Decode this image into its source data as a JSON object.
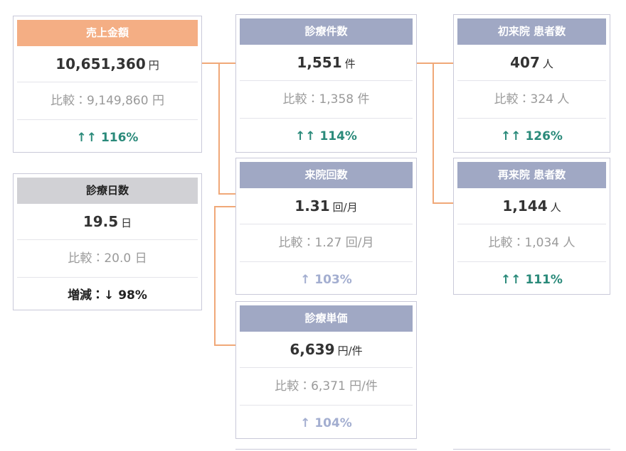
{
  "cards": [
    {
      "title": "売上金額",
      "value": "10,651,360",
      "unit": "円",
      "comparison": "比較：9,149,860 円",
      "change": "↑↑ 116%"
    },
    {
      "title": "診療日数",
      "value": "19.5",
      "unit": "日",
      "comparison": "比較：20.0 日",
      "change": "増減：↓ 98%"
    },
    {
      "title": "診療件数",
      "value": "1,551",
      "unit": "件",
      "comparison": "比較：1,358 件",
      "change": "↑↑ 114%"
    },
    {
      "title": "来院回数",
      "value": "1.31",
      "unit": "回/月",
      "comparison": "比較：1.27 回/月",
      "change": "↑ 103%"
    },
    {
      "title": "診療単価",
      "value": "6,639",
      "unit": "円/件",
      "comparison": "比較：6,371 円/件",
      "change": "↑ 104%"
    },
    {
      "title": "初来院 患者数",
      "value": "407",
      "unit": "人",
      "comparison": "比較：324 人",
      "change": "↑↑ 126%"
    },
    {
      "title": "再来院 患者数",
      "value": "1,144",
      "unit": "人",
      "comparison": "比較：1,034 人",
      "change": "↑↑ 111%"
    }
  ]
}
